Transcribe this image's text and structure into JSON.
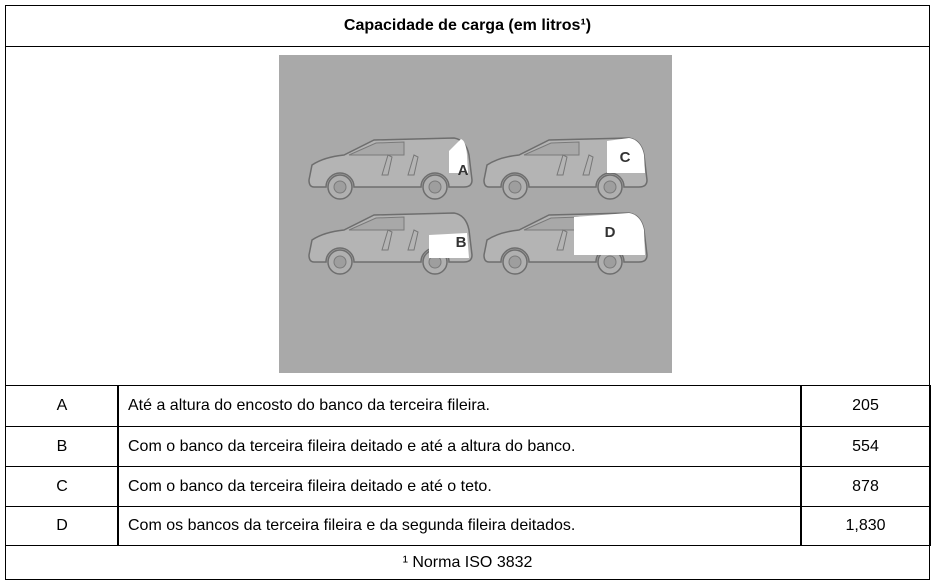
{
  "header": {
    "title": "Capacidade de carga (em litros¹)"
  },
  "image": {
    "labels": [
      "A",
      "C",
      "B",
      "D"
    ]
  },
  "table": {
    "rows": [
      [
        "A",
        "Até a altura do encosto do banco da terceira fileira.",
        "205"
      ],
      [
        "B",
        "Com o banco da terceira fileira deitado e até a altura do banco.",
        "554"
      ],
      [
        "C",
        "Com o banco da terceira fileira deitado e até o teto.",
        "878"
      ],
      [
        "D",
        "Com os bancos da terceira fileira e da segunda fileira deitados.",
        "1,830"
      ]
    ]
  },
  "footnote": "¹ Norma ISO 3832"
}
